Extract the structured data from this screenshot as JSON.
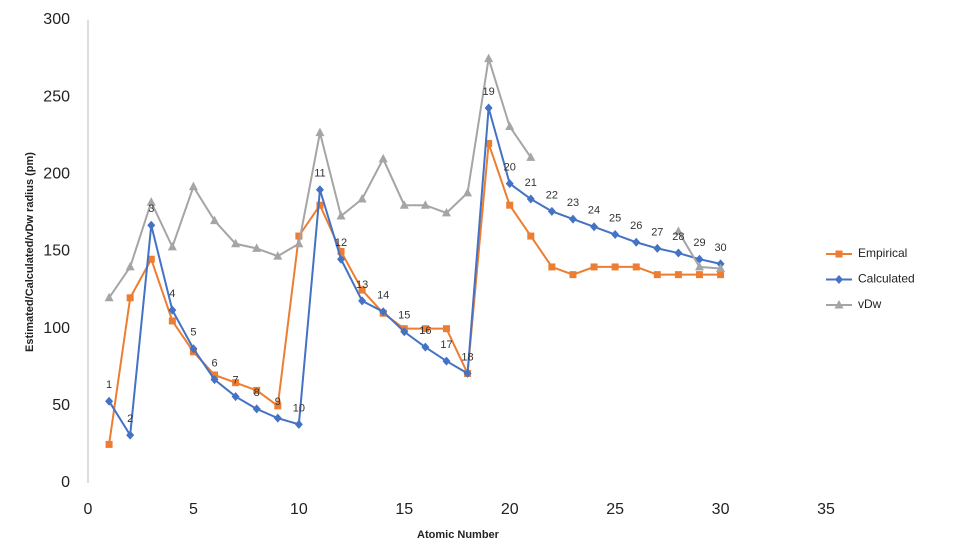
{
  "chart_data": {
    "type": "line",
    "x_label": "Atomic Number",
    "y_label": "Estimated/Calculated/vDw radius (pm)",
    "x": [
      1,
      2,
      3,
      4,
      5,
      6,
      7,
      8,
      9,
      10,
      11,
      12,
      13,
      14,
      15,
      16,
      17,
      18,
      19,
      20,
      21,
      22,
      23,
      24,
      25,
      26,
      27,
      28,
      29,
      30
    ],
    "series": [
      {
        "name": "Empirical",
        "color": "#ed7d31",
        "marker": "square",
        "values": [
          25,
          120,
          145,
          105,
          85,
          70,
          65,
          60,
          50,
          160,
          180,
          150,
          125,
          110,
          100,
          100,
          100,
          71,
          220,
          180,
          160,
          140,
          135,
          140,
          140,
          140,
          135,
          135,
          135,
          135
        ]
      },
      {
        "name": "Calculated",
        "color": "#4472c4",
        "marker": "diamond",
        "values": [
          53,
          31,
          167,
          112,
          87,
          67,
          56,
          48,
          42,
          38,
          190,
          145,
          118,
          111,
          98,
          88,
          79,
          71,
          243,
          194,
          184,
          176,
          171,
          166,
          161,
          156,
          152,
          149,
          145,
          142
        ]
      },
      {
        "name": "vDw",
        "color": "#a5a5a5",
        "marker": "triangle",
        "values": [
          120,
          140,
          182,
          153,
          192,
          170,
          155,
          152,
          147,
          155,
          227,
          173,
          184,
          210,
          180,
          180,
          175,
          188,
          275,
          231,
          211,
          null,
          null,
          null,
          null,
          null,
          null,
          163,
          140,
          139
        ]
      }
    ],
    "xlim": [
      0,
      35
    ],
    "xticks": [
      0,
      5,
      10,
      15,
      20,
      25,
      30,
      35
    ],
    "ylim": [
      0,
      300
    ],
    "yticks": [
      0,
      50,
      100,
      150,
      200,
      250,
      300
    ],
    "grid": false,
    "legend": "right"
  }
}
